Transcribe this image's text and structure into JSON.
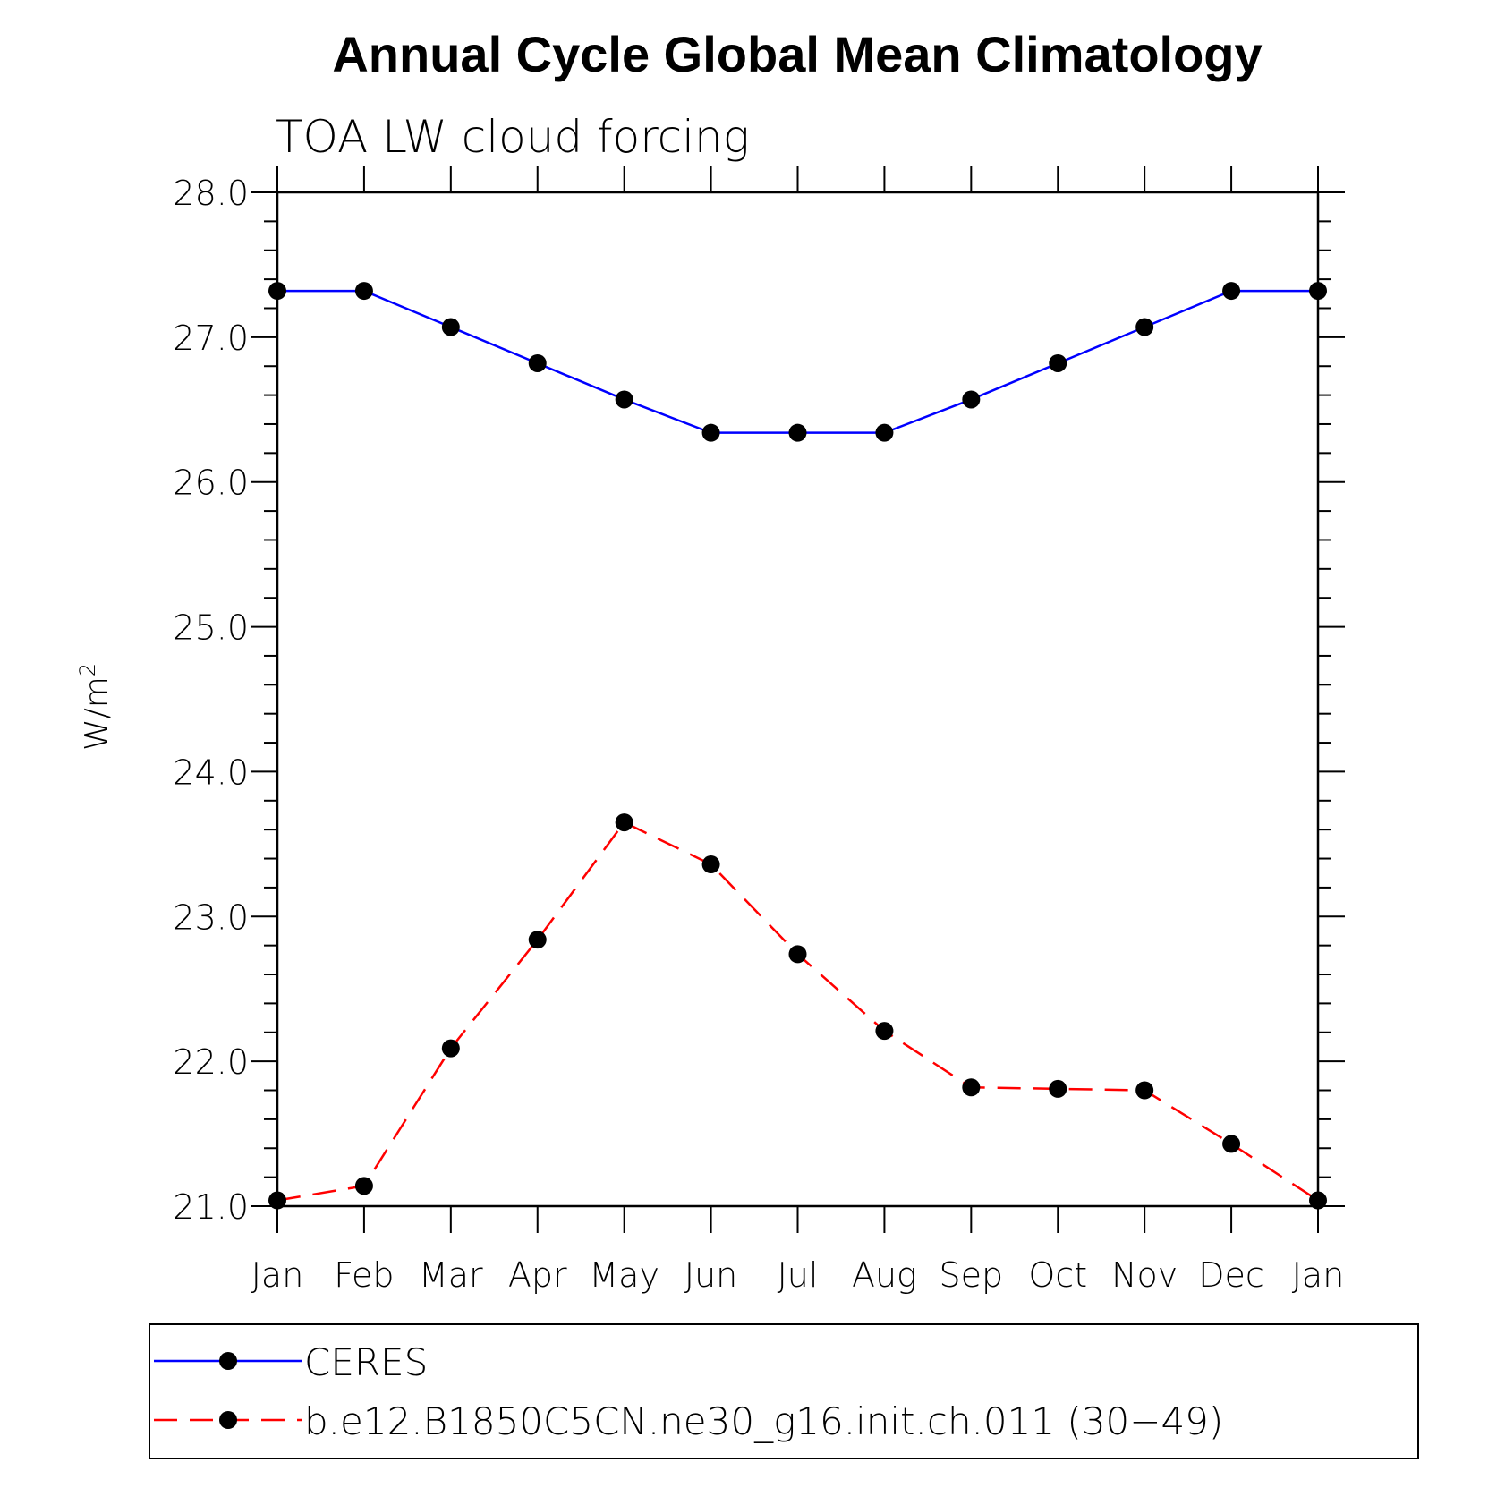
{
  "chart_data": {
    "type": "line",
    "title": "Annual Cycle Global Mean Climatology",
    "subtitle": "TOA LW cloud forcing",
    "ylabel": "W/m",
    "ylabel_superscript": "2",
    "xlabel": "",
    "ylim": [
      21.0,
      28.0
    ],
    "yticks": [
      "21.0",
      "22.0",
      "23.0",
      "24.0",
      "25.0",
      "26.0",
      "27.0",
      "28.0"
    ],
    "categories": [
      "Jan",
      "Feb",
      "Mar",
      "Apr",
      "May",
      "Jun",
      "Jul",
      "Aug",
      "Sep",
      "Oct",
      "Nov",
      "Dec",
      "Jan"
    ],
    "grid": false,
    "legend_position": "bottom",
    "series": [
      {
        "name": "CERES",
        "color": "#0000ff",
        "line_style": "solid",
        "marker": "filled-circle",
        "values": [
          27.32,
          27.32,
          27.07,
          26.82,
          26.57,
          26.34,
          26.34,
          26.34,
          26.57,
          26.82,
          27.07,
          27.32,
          27.32
        ]
      },
      {
        "name": "b.e12.B1850C5CN.ne30_g16.init.ch.011 (30−49)",
        "color": "#ff0000",
        "line_style": "dashed",
        "marker": "filled-circle",
        "values": [
          21.04,
          21.14,
          22.09,
          22.84,
          23.65,
          23.36,
          22.74,
          22.21,
          21.82,
          21.81,
          21.8,
          21.43,
          21.04
        ]
      }
    ]
  }
}
